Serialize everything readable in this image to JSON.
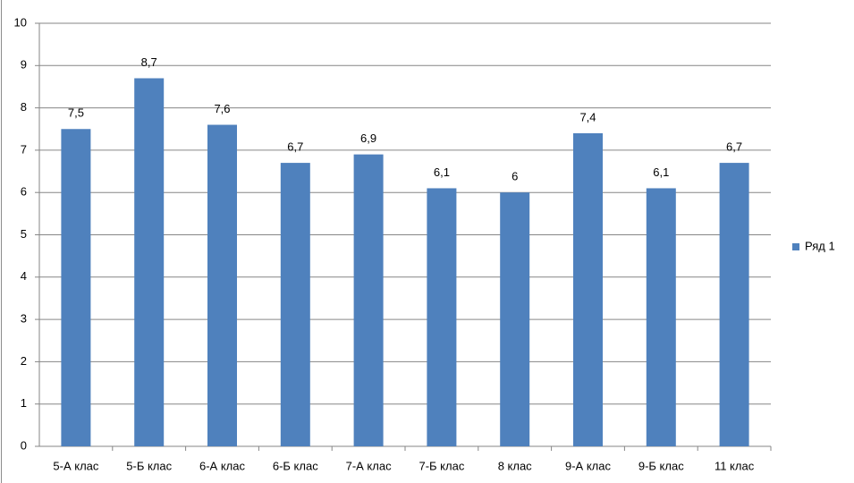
{
  "chart_data": {
    "type": "bar",
    "categories": [
      "5-А клас",
      "5-Б клас",
      "6-А клас",
      "6-Б клас",
      "7-А клас",
      "7-Б клас",
      "8 клас",
      "9-А клас",
      "9-Б клас",
      "11 клас"
    ],
    "series": [
      {
        "name": "Ряд 1",
        "color": "#4f81bd",
        "values": [
          7.5,
          8.7,
          7.6,
          6.7,
          6.9,
          6.1,
          6,
          7.4,
          6.1,
          6.7
        ],
        "value_labels": [
          "7,5",
          "8,7",
          "7,6",
          "6,7",
          "6,9",
          "6,1",
          "6",
          "7,4",
          "6,1",
          "6,7"
        ]
      }
    ],
    "ylim": [
      0,
      10
    ],
    "yticks": [
      0,
      1,
      2,
      3,
      4,
      5,
      6,
      7,
      8,
      9,
      10
    ],
    "grid": true,
    "legend": "right"
  }
}
